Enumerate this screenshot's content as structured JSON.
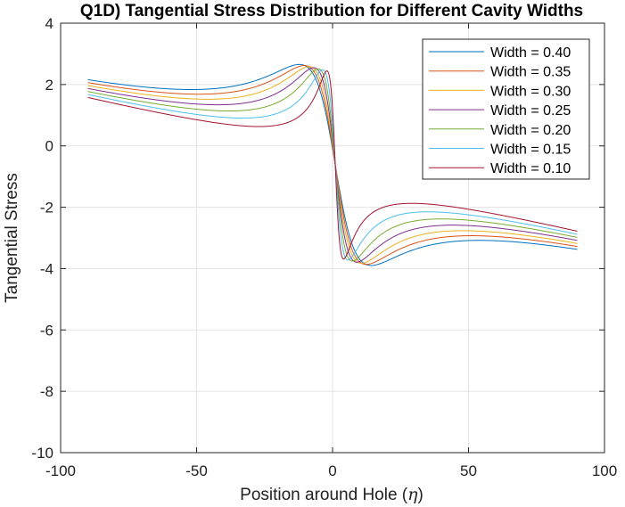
{
  "chart_data": {
    "type": "line",
    "title": "Q1D) Tangential Stress Distribution for Different Cavity Widths",
    "xlabel_text": "Position around Hole (",
    "xlabel_symbol": "η",
    "xlabel_close": ")",
    "ylabel": "Tangential Stress",
    "xlim": [
      -100,
      100
    ],
    "ylim": [
      -10,
      4
    ],
    "xticks": [
      -100,
      -50,
      0,
      50,
      100
    ],
    "xtick_labels": [
      "-100",
      "-50",
      "0",
      "50",
      "100"
    ],
    "yticks": [
      -10,
      -8,
      -6,
      -4,
      -2,
      0,
      2,
      4
    ],
    "ytick_labels": [
      "-10",
      "-8",
      "-6",
      "-4",
      "-2",
      "0",
      "2",
      "4"
    ],
    "grid": true,
    "legend_position": "top-right",
    "x_range": [
      -90,
      90
    ],
    "series": [
      {
        "name": "Width = 0.40",
        "color": "#0072BD",
        "width": 0.4
      },
      {
        "name": "Width = 0.35",
        "color": "#D95319",
        "width": 0.35
      },
      {
        "name": "Width = 0.30",
        "color": "#EDB120",
        "width": 0.3
      },
      {
        "name": "Width = 0.25",
        "color": "#7E2F8E",
        "width": 0.25
      },
      {
        "name": "Width = 0.20",
        "color": "#77AC30",
        "width": 0.2
      },
      {
        "name": "Width = 0.15",
        "color": "#4DBEEE",
        "width": 0.15
      },
      {
        "name": "Width = 0.10",
        "color": "#A2142F",
        "width": 0.1
      }
    ]
  }
}
